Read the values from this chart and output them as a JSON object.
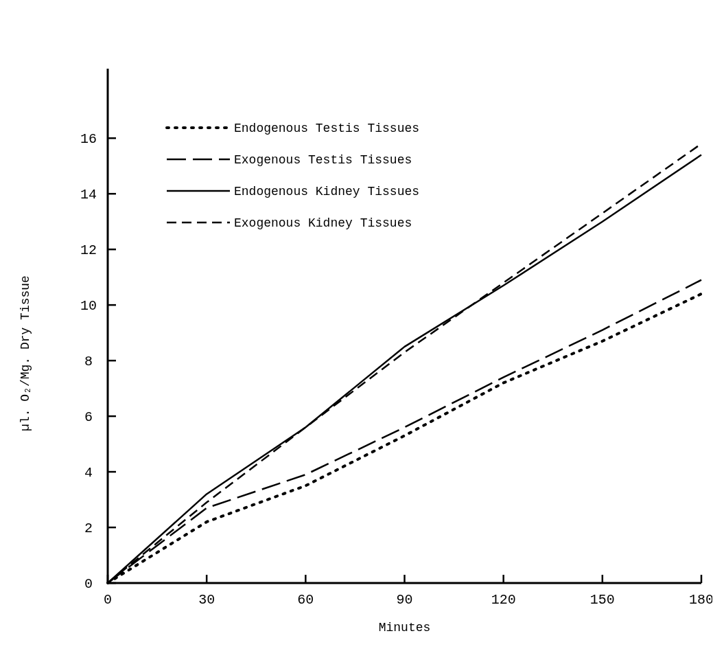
{
  "chart_data": {
    "type": "line",
    "xlabel": "Minutes",
    "ylabel": "µl. O₂/Mg. Dry Tissue",
    "x": [
      0,
      30,
      60,
      90,
      120,
      150,
      180
    ],
    "xlim": [
      0,
      180
    ],
    "xticks": [
      0,
      30,
      60,
      90,
      120,
      150,
      180
    ],
    "ylim": [
      0,
      18.5
    ],
    "yticks": [
      0,
      2,
      4,
      6,
      8,
      10,
      12,
      14,
      16
    ],
    "grid": false,
    "legend": "top left",
    "marker": "none",
    "series": [
      {
        "name": "Endogenous Testis Tissues",
        "color": "#000000",
        "line_style": "dotted",
        "values": [
          0,
          2.2,
          3.5,
          5.3,
          7.2,
          8.7,
          10.4
        ]
      },
      {
        "name": "Exogenous Testis Tissues",
        "color": "#000000",
        "line_style": "long-dashed",
        "values": [
          0,
          2.7,
          3.9,
          5.6,
          7.4,
          9.1,
          10.9
        ]
      },
      {
        "name": "Endogenous Kidney Tissues",
        "color": "#000000",
        "line_style": "solid",
        "values": [
          0,
          3.2,
          5.6,
          8.5,
          10.7,
          13.0,
          15.4
        ]
      },
      {
        "name": "Exogenous Kidney Tissues",
        "color": "#000000",
        "line_style": "dashed",
        "values": [
          0,
          2.9,
          5.6,
          8.3,
          10.8,
          13.3,
          15.8
        ]
      }
    ]
  }
}
